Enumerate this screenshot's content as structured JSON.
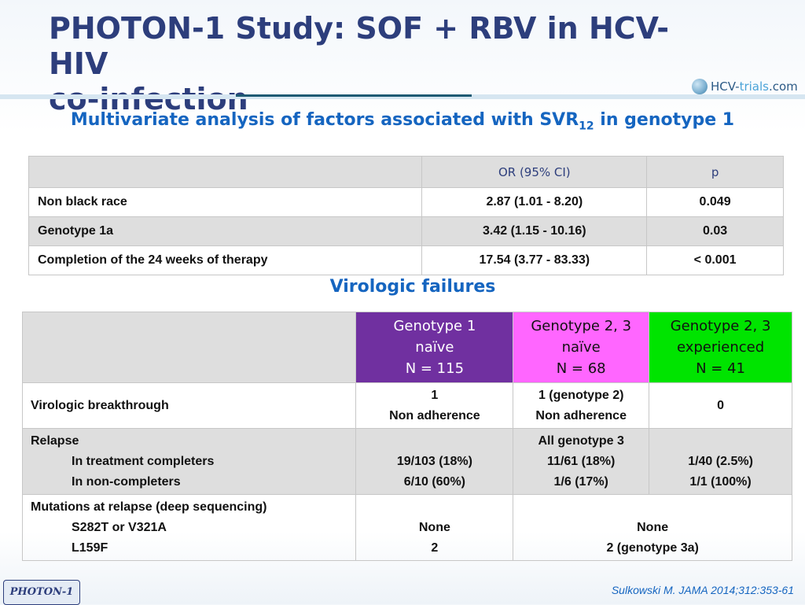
{
  "title": {
    "line1": "PHOTON-1 Study: SOF + RBV in HCV-HIV",
    "line2": "co-infection"
  },
  "logo": {
    "prefix": "HCV-",
    "mid": "trials",
    "suffix": ".com"
  },
  "subtitle": {
    "before": "Multivariate analysis of factors associated with SVR",
    "sub": "12",
    "after": " in genotype 1"
  },
  "table1": {
    "headers": [
      "",
      "OR (95% CI)",
      "p"
    ],
    "rows": [
      [
        "Non black race",
        "2.87 (1.01 - 8.20)",
        "0.049"
      ],
      [
        "Genotype 1a",
        "3.42 (1.15 - 10.16)",
        "0.03"
      ],
      [
        "Completion of the 24 weeks of therapy",
        "17.54 (3.77 - 83.33)",
        "< 0.001"
      ]
    ]
  },
  "section2_title": "Virologic failures",
  "table2": {
    "headers": [
      {
        "l1": "Genotype 1",
        "l2": "naïve",
        "l3": "N = 115"
      },
      {
        "l1": "Genotype 2, 3",
        "l2": "naïve",
        "l3": "N = 68"
      },
      {
        "l1": "Genotype 2, 3",
        "l2": "experienced",
        "l3": "N = 41"
      }
    ],
    "breakthrough": {
      "label": "Virologic breakthrough",
      "g1": [
        "1",
        "Non adherence"
      ],
      "g2": [
        "1 (genotype 2)",
        "Non adherence"
      ],
      "g3": "0"
    },
    "relapse": {
      "label": "Relapse",
      "sub1": "In treatment completers",
      "sub2": "In non-completers",
      "g1": [
        "19/103 (18%)",
        "6/10 (60%)"
      ],
      "g2": [
        "All genotype 3",
        "11/61 (18%)",
        "1/6 (17%)"
      ],
      "g3": [
        "1/40 (2.5%)",
        "1/1 (100%)"
      ]
    },
    "mutations": {
      "label": "Mutations at relapse (deep sequencing)",
      "sub1": "S282T or V321A",
      "sub2": "L159F",
      "g1": [
        "None",
        "2"
      ],
      "g23": [
        "None",
        "2 (genotype 3a)"
      ]
    }
  },
  "footer_label": "PHOTON-1",
  "citation": "Sulkowski M. JAMA 2014;312:353-61",
  "colors": {
    "title": "#2d3e7c",
    "accent": "#1565c0",
    "genotype1": "#7030a0",
    "genotype23_naive": "#ff66ff",
    "genotype23_experienced": "#00e400",
    "table_grey": "#dedede"
  }
}
